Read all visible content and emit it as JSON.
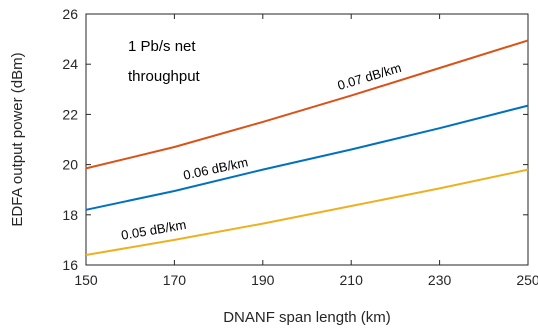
{
  "chart_data": {
    "type": "line",
    "title": "",
    "xlabel": "DNANF span length (km)",
    "ylabel": "EDFA output power (dBm)",
    "xlim": [
      150,
      250
    ],
    "ylim": [
      16,
      26
    ],
    "xticks": [
      150,
      170,
      190,
      210,
      230,
      250
    ],
    "yticks": [
      16,
      18,
      20,
      22,
      24,
      26
    ],
    "xtick_labels": [
      "150",
      "170",
      "190",
      "210",
      "230",
      "250"
    ],
    "ytick_labels": [
      "16",
      "18",
      "20",
      "22",
      "24",
      "26"
    ],
    "grid": false,
    "annotations": [
      "1 Pb/s net",
      "throughput"
    ],
    "series": [
      {
        "name": "0.07 dB/km",
        "color": "#d95319",
        "x": [
          150,
          170,
          190,
          210,
          230,
          250
        ],
        "y": [
          19.85,
          20.7,
          21.7,
          22.75,
          23.85,
          24.95
        ]
      },
      {
        "name": "0.06 dB/km",
        "color": "#0072bd",
        "x": [
          150,
          170,
          190,
          210,
          230,
          250
        ],
        "y": [
          18.2,
          18.95,
          19.8,
          20.6,
          21.45,
          22.35
        ]
      },
      {
        "name": "0.05 dB/km",
        "color": "#edb120",
        "x": [
          150,
          170,
          190,
          210,
          230,
          250
        ],
        "y": [
          16.4,
          17.0,
          17.65,
          18.35,
          19.05,
          19.8
        ]
      }
    ]
  }
}
